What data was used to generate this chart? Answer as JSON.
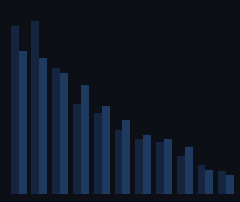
{
  "groups": [
    {
      "bar1": 97,
      "bar2": 83
    },
    {
      "bar1": 100,
      "bar2": 79
    },
    {
      "bar1": 73,
      "bar2": 70
    },
    {
      "bar1": 52,
      "bar2": 63
    },
    {
      "bar1": 47,
      "bar2": 51
    },
    {
      "bar1": 37,
      "bar2": 43
    },
    {
      "bar1": 32,
      "bar2": 34
    },
    {
      "bar1": 30,
      "bar2": 32
    },
    {
      "bar1": 22,
      "bar2": 27
    },
    {
      "bar1": 17,
      "bar2": 14
    },
    {
      "bar1": 13,
      "bar2": 11
    }
  ],
  "bar_color1": "#152540",
  "bar_color2": "#1e3a5f",
  "background_color": "#0c1016",
  "plot_bg_color": "#0c1016",
  "grid_color": "#2a3a4a",
  "bar_width": 0.38,
  "ylim": [
    0,
    110
  ],
  "figw": 2.4,
  "figh": 2.02,
  "dpi": 100
}
